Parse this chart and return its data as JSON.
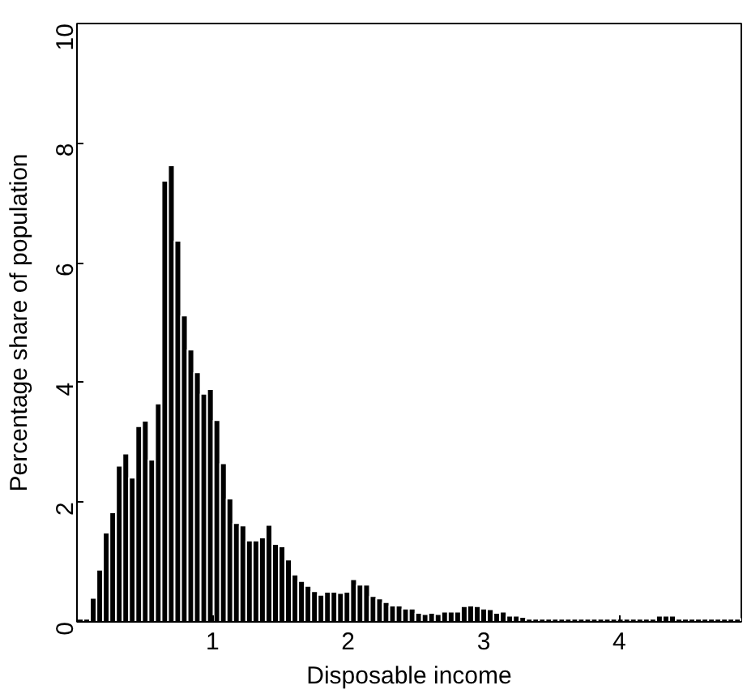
{
  "chart_data": {
    "type": "histogram",
    "xlabel": "Disposable income",
    "ylabel": "Percentage share of population",
    "color": "#000000",
    "bins": [
      0,
      0.048,
      0.096,
      0.144,
      0.192,
      0.24,
      0.288,
      0.336,
      0.384,
      0.432,
      0.48,
      0.528,
      0.576,
      0.624,
      0.672,
      0.72,
      0.768,
      0.816,
      0.864,
      0.912,
      0.96,
      1.008,
      1.056,
      1.104,
      1.152,
      1.2,
      1.248,
      1.296,
      1.344,
      1.392,
      1.44,
      1.488,
      1.536,
      1.584,
      1.632,
      1.68,
      1.728,
      1.776,
      1.824,
      1.872,
      1.92,
      1.968,
      2.016,
      2.064,
      2.112,
      2.16,
      2.208,
      2.256,
      2.304,
      2.352,
      2.4,
      2.448,
      2.496,
      2.544,
      2.592,
      2.64,
      2.688,
      2.736,
      2.784,
      2.832,
      2.88,
      2.928,
      2.976,
      3.024,
      3.072,
      3.12,
      3.168,
      3.216,
      3.264,
      3.312,
      3.36,
      3.408,
      3.456,
      3.504,
      3.552,
      3.6,
      3.648,
      3.696,
      3.744,
      3.792,
      3.84,
      3.888,
      3.936,
      3.984,
      4.032,
      4.08,
      4.128,
      4.176,
      4.224,
      4.272,
      4.32,
      4.368,
      4.416,
      4.464,
      4.512,
      4.56,
      4.608,
      4.656,
      4.704,
      4.752,
      4.8,
      4.848,
      4.896
    ],
    "values": [
      0.05,
      0.05,
      0.4,
      0.87,
      1.49,
      1.83,
      2.61,
      2.81,
      2.41,
      3.27,
      3.36,
      2.71,
      3.65,
      7.37,
      7.63,
      6.37,
      5.12,
      4.55,
      4.17,
      3.81,
      3.89,
      3.37,
      2.65,
      2.06,
      1.65,
      1.61,
      1.36,
      1.36,
      1.41,
      1.62,
      1.3,
      1.26,
      1.04,
      0.79,
      0.68,
      0.6,
      0.51,
      0.45,
      0.5,
      0.5,
      0.48,
      0.5,
      0.71,
      0.62,
      0.62,
      0.43,
      0.39,
      0.33,
      0.27,
      0.27,
      0.22,
      0.22,
      0.15,
      0.13,
      0.15,
      0.13,
      0.17,
      0.17,
      0.17,
      0.26,
      0.27,
      0.26,
      0.22,
      0.21,
      0.15,
      0.17,
      0.1,
      0.1,
      0.08,
      0.05,
      0.05,
      0.05,
      0.05,
      0.05,
      0.05,
      0.05,
      0.05,
      0.05,
      0.05,
      0.05,
      0.05,
      0.05,
      0.05,
      0.05,
      0.05,
      0.05,
      0.05,
      0.05,
      0.05,
      0.1,
      0.1,
      0.1,
      0.05,
      0.05,
      0.05,
      0.05,
      0.05,
      0.05,
      0.05,
      0.05,
      0.05,
      0.05
    ],
    "xlim": [
      0,
      4.9
    ],
    "ylim": [
      0,
      10
    ],
    "xticks": [
      1,
      2,
      3,
      4
    ],
    "yticks": [
      0,
      2,
      4,
      6,
      8,
      10
    ],
    "grid": false
  }
}
